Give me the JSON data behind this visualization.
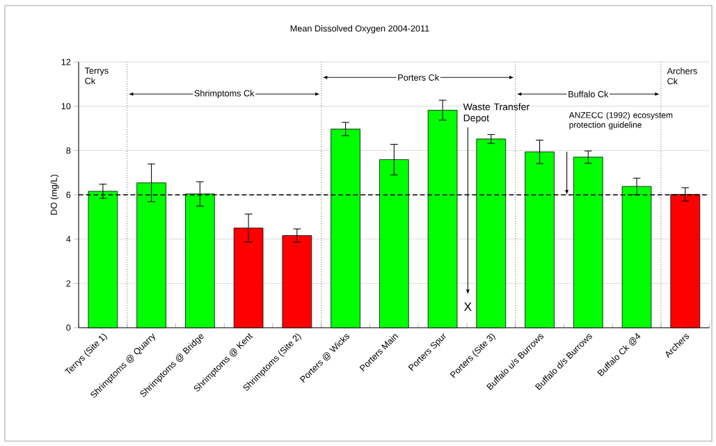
{
  "chart_data": {
    "type": "bar",
    "title": "Mean Dissolved Oxygen 2004-2011",
    "ylabel": "DO (mg/L)",
    "categories": [
      "Terrys (Site 1)",
      "Shrimptoms @ Quarry",
      "Shrimptoms @ Bridge",
      "Shrimptoms @ Kent",
      "Shrimptoms (Site 2)",
      "Porters @ Wicks",
      "Porters Main",
      "Porters Spur",
      "Porters (Site 3)",
      "Buffalo u/s Burrows",
      "Buffalo d/s Burrows",
      "Buffalo Ck @4",
      "Archers"
    ],
    "values": [
      6.16,
      6.54,
      6.04,
      4.5,
      4.16,
      8.97,
      7.59,
      9.82,
      8.52,
      7.94,
      7.7,
      6.38,
      6.02
    ],
    "errors": [
      0.32,
      0.85,
      0.55,
      0.63,
      0.3,
      0.3,
      0.69,
      0.45,
      0.2,
      0.53,
      0.28,
      0.37,
      0.3
    ],
    "colors": [
      "#00ff00",
      "#00ff00",
      "#00ff00",
      "#ff0000",
      "#ff0000",
      "#00ff00",
      "#00ff00",
      "#00ff00",
      "#00ff00",
      "#00ff00",
      "#00ff00",
      "#00ff00",
      "#ff0000"
    ],
    "ylim": [
      0,
      12
    ],
    "yticks": [
      0,
      2,
      4,
      6,
      8,
      10,
      12
    ],
    "grid": "y",
    "ref_lines": [
      {
        "axis": "y",
        "value": 6,
        "label": "ANZECC (1992) ecosystem protection guideline",
        "line_style": "dashed",
        "color": "#000000"
      }
    ],
    "annotations": [
      "Terrys Ck",
      "Shrimptoms Ck",
      "Porters Ck",
      "Buffalo Ck",
      "Archers Ck",
      "Waste Transfer Depot",
      "X"
    ]
  }
}
